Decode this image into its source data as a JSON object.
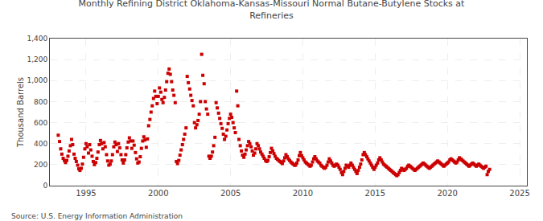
{
  "chart_data": {
    "type": "scatter",
    "title": "Monthly Refining District Oklahoma-Kansas-Missouri Normal Butane-Butylene Stocks at\nRefineries",
    "ylabel": "Thousand Barrels",
    "annotations": [
      "Source: U.S. Energy Information Administration"
    ],
    "color": "#cc0000",
    "marker": "square",
    "grid": true,
    "xlim": [
      1992.5,
      2025.5
    ],
    "xticks": [
      1995,
      2000,
      2005,
      2010,
      2015,
      2020,
      2025
    ],
    "ylim": [
      0,
      1400
    ],
    "yticks": [
      0,
      200,
      400,
      600,
      800,
      {
        "value": 1000,
        "label": "1,000"
      },
      {
        "value": 1200,
        "label": "1,200"
      },
      {
        "value": 1400,
        "label": "1,400"
      }
    ],
    "x": [
      1993.08,
      1993.17,
      1993.25,
      1993.33,
      1993.42,
      1993.5,
      1993.58,
      1993.67,
      1993.75,
      1993.83,
      1993.92,
      1994.0,
      1994.08,
      1994.17,
      1994.25,
      1994.33,
      1994.42,
      1994.5,
      1994.58,
      1994.67,
      1994.75,
      1994.83,
      1994.92,
      1995.0,
      1995.08,
      1995.17,
      1995.25,
      1995.33,
      1995.42,
      1995.5,
      1995.58,
      1995.67,
      1995.75,
      1995.83,
      1995.92,
      1996.0,
      1996.08,
      1996.17,
      1996.25,
      1996.33,
      1996.42,
      1996.5,
      1996.58,
      1996.67,
      1996.75,
      1996.83,
      1996.92,
      1997.0,
      1997.08,
      1997.17,
      1997.25,
      1997.33,
      1997.42,
      1997.5,
      1997.58,
      1997.67,
      1997.75,
      1997.83,
      1997.92,
      1998.0,
      1998.08,
      1998.17,
      1998.25,
      1998.33,
      1998.42,
      1998.5,
      1998.58,
      1998.67,
      1998.75,
      1998.83,
      1998.92,
      1999.0,
      1999.08,
      1999.17,
      1999.25,
      1999.33,
      1999.42,
      1999.5,
      1999.58,
      1999.67,
      1999.75,
      1999.83,
      1999.92,
      2000.0,
      2000.08,
      2000.17,
      2000.25,
      2000.33,
      2000.42,
      2000.5,
      2000.58,
      2000.67,
      2000.75,
      2000.83,
      2000.92,
      2001.0,
      2001.08,
      2001.17,
      2001.25,
      2001.33,
      2001.42,
      2001.5,
      2001.58,
      2001.67,
      2001.75,
      2001.83,
      2001.92,
      2002.0,
      2002.08,
      2002.17,
      2002.25,
      2002.33,
      2002.42,
      2002.5,
      2002.58,
      2002.67,
      2002.75,
      2002.83,
      2002.92,
      2003.0,
      2003.08,
      2003.17,
      2003.25,
      2003.33,
      2003.42,
      2003.5,
      2003.58,
      2003.67,
      2003.75,
      2003.83,
      2003.92,
      2004.0,
      2004.08,
      2004.17,
      2004.25,
      2004.33,
      2004.42,
      2004.5,
      2004.58,
      2004.67,
      2004.75,
      2004.83,
      2004.92,
      2005.0,
      2005.08,
      2005.17,
      2005.25,
      2005.33,
      2005.42,
      2005.5,
      2005.58,
      2005.67,
      2005.75,
      2005.83,
      2005.92,
      2006.0,
      2006.08,
      2006.17,
      2006.25,
      2006.33,
      2006.42,
      2006.5,
      2006.58,
      2006.67,
      2006.75,
      2006.83,
      2006.92,
      2007.0,
      2007.08,
      2007.17,
      2007.25,
      2007.33,
      2007.42,
      2007.5,
      2007.58,
      2007.67,
      2007.75,
      2007.83,
      2007.92,
      2008.0,
      2008.08,
      2008.17,
      2008.25,
      2008.33,
      2008.42,
      2008.5,
      2008.58,
      2008.67,
      2008.75,
      2008.83,
      2008.92,
      2009.0,
      2009.08,
      2009.17,
      2009.25,
      2009.33,
      2009.42,
      2009.5,
      2009.58,
      2009.67,
      2009.75,
      2009.83,
      2009.92,
      2010.0,
      2010.08,
      2010.17,
      2010.25,
      2010.33,
      2010.42,
      2010.5,
      2010.58,
      2010.67,
      2010.75,
      2010.83,
      2010.92,
      2011.0,
      2011.08,
      2011.17,
      2011.25,
      2011.33,
      2011.42,
      2011.5,
      2011.58,
      2011.67,
      2011.75,
      2011.83,
      2011.92,
      2012.0,
      2012.08,
      2012.17,
      2012.25,
      2012.33,
      2012.42,
      2012.5,
      2012.58,
      2012.67,
      2012.75,
      2012.83,
      2012.92,
      2013.0,
      2013.08,
      2013.17,
      2013.25,
      2013.33,
      2013.42,
      2013.5,
      2013.58,
      2013.67,
      2013.75,
      2013.83,
      2013.92,
      2014.0,
      2014.08,
      2014.17,
      2014.25,
      2014.33,
      2014.42,
      2014.5,
      2014.58,
      2014.67,
      2014.75,
      2014.83,
      2014.92,
      2015.0,
      2015.08,
      2015.17,
      2015.25,
      2015.33,
      2015.42,
      2015.5,
      2015.58,
      2015.67,
      2015.75,
      2015.83,
      2015.92,
      2016.0,
      2016.08,
      2016.17,
      2016.25,
      2016.33,
      2016.42,
      2016.5,
      2016.58,
      2016.67,
      2016.75,
      2016.83,
      2016.92,
      2017.0,
      2017.08,
      2017.17,
      2017.25,
      2017.33,
      2017.42,
      2017.5,
      2017.58,
      2017.67,
      2017.75,
      2017.83,
      2017.92,
      2018.0,
      2018.08,
      2018.17,
      2018.25,
      2018.33,
      2018.42,
      2018.5,
      2018.58,
      2018.67,
      2018.75,
      2018.83,
      2018.92,
      2019.0,
      2019.08,
      2019.17,
      2019.25,
      2019.33,
      2019.42,
      2019.5,
      2019.58,
      2019.67,
      2019.75,
      2019.83,
      2019.92,
      2020.0,
      2020.08,
      2020.17,
      2020.25,
      2020.33,
      2020.42,
      2020.5,
      2020.58,
      2020.67,
      2020.75,
      2020.83,
      2020.92,
      2021.0,
      2021.08,
      2021.17,
      2021.25,
      2021.33,
      2021.42,
      2021.5,
      2021.58,
      2021.67,
      2021.75,
      2021.83,
      2021.92,
      2022.0,
      2022.08,
      2022.17,
      2022.25,
      2022.33,
      2022.42,
      2022.5,
      2022.58,
      2022.67,
      2022.75,
      2022.83,
      2022.92
    ],
    "values": [
      480,
      420,
      350,
      300,
      260,
      240,
      220,
      240,
      280,
      330,
      380,
      440,
      390,
      300,
      260,
      230,
      195,
      160,
      145,
      165,
      205,
      270,
      350,
      400,
      370,
      310,
      390,
      340,
      280,
      230,
      200,
      220,
      260,
      320,
      390,
      430,
      400,
      350,
      410,
      370,
      295,
      235,
      195,
      205,
      235,
      295,
      370,
      415,
      390,
      325,
      400,
      360,
      295,
      245,
      215,
      245,
      295,
      360,
      415,
      455,
      425,
      355,
      425,
      385,
      315,
      255,
      215,
      225,
      275,
      355,
      425,
      465,
      435,
      365,
      445,
      570,
      630,
      700,
      760,
      830,
      900,
      850,
      780,
      850,
      930,
      890,
      820,
      790,
      840,
      910,
      990,
      1070,
      1110,
      1060,
      990,
      910,
      860,
      790,
      230,
      210,
      240,
      290,
      340,
      390,
      440,
      490,
      550,
      1040,
      980,
      920,
      860,
      810,
      760,
      600,
      550,
      580,
      620,
      680,
      800,
      1250,
      1050,
      970,
      800,
      730,
      680,
      280,
      260,
      280,
      320,
      380,
      460,
      790,
      740,
      690,
      640,
      590,
      545,
      490,
      440,
      470,
      530,
      590,
      640,
      680,
      650,
      600,
      550,
      505,
      900,
      760,
      440,
      380,
      330,
      290,
      270,
      300,
      340,
      380,
      420,
      400,
      370,
      330,
      290,
      310,
      350,
      400,
      380,
      350,
      320,
      300,
      280,
      260,
      240,
      230,
      240,
      275,
      315,
      355,
      330,
      305,
      280,
      260,
      250,
      240,
      230,
      220,
      210,
      235,
      265,
      295,
      275,
      255,
      240,
      225,
      215,
      205,
      195,
      195,
      215,
      245,
      285,
      315,
      285,
      265,
      245,
      225,
      215,
      205,
      195,
      185,
      195,
      225,
      255,
      275,
      255,
      235,
      225,
      215,
      195,
      185,
      175,
      165,
      175,
      195,
      225,
      255,
      235,
      215,
      195,
      185,
      195,
      205,
      195,
      175,
      155,
      125,
      105,
      135,
      165,
      195,
      185,
      175,
      195,
      215,
      195,
      175,
      155,
      135,
      115,
      145,
      175,
      205,
      245,
      295,
      315,
      295,
      275,
      255,
      235,
      215,
      195,
      175,
      155,
      175,
      195,
      215,
      245,
      265,
      245,
      225,
      205,
      195,
      185,
      175,
      165,
      155,
      145,
      135,
      125,
      115,
      105,
      95,
      105,
      125,
      145,
      165,
      155,
      145,
      155,
      165,
      185,
      195,
      185,
      175,
      165,
      155,
      145,
      155,
      165,
      175,
      185,
      195,
      205,
      215,
      205,
      195,
      185,
      175,
      165,
      175,
      185,
      195,
      205,
      215,
      225,
      235,
      225,
      215,
      205,
      195,
      185,
      195,
      205,
      215,
      225,
      245,
      255,
      245,
      235,
      225,
      215,
      225,
      245,
      265,
      255,
      245,
      235,
      225,
      215,
      205,
      195,
      185,
      195,
      205,
      215,
      205,
      195,
      185,
      195,
      205,
      195,
      185,
      175,
      165,
      175,
      185,
      105,
      135,
      155
    ]
  }
}
